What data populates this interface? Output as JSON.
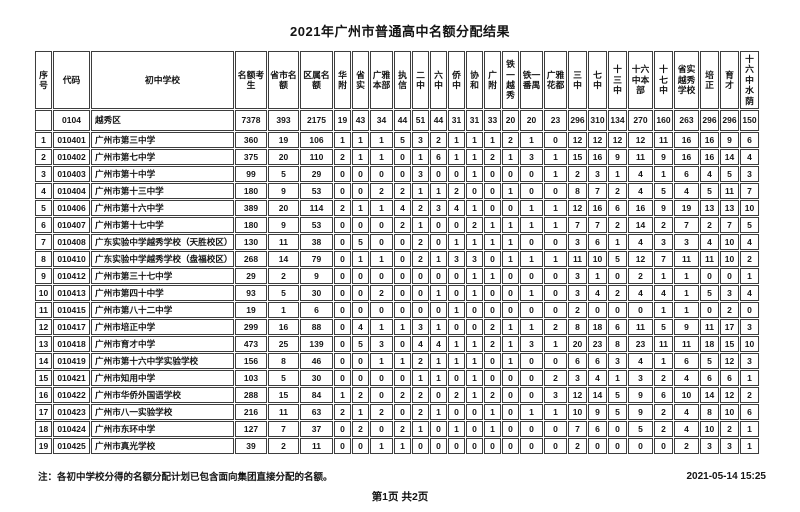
{
  "title": "2021年广州市普通高中名额分配结果",
  "note": "注：各初中学校分得的名额分配计划已包含面向集团直接分配的名额。",
  "footer": {
    "page_info": "第1页 共2页",
    "timestamp": "2021-05-14 15:25"
  },
  "table": {
    "headers": [
      "序号",
      "代码",
      "初中学校",
      "名额考生",
      "省市名额",
      "区属名额",
      "华附",
      "省实",
      "广雅本部",
      "执信",
      "二中",
      "六中",
      "侨中",
      "协和",
      "广附",
      "铁一越秀",
      "铁一番禺",
      "广雅花都",
      "三中",
      "七中",
      "十三中",
      "十六中本部",
      "十七中",
      "省实越秀学校",
      "培正",
      "育才",
      "十六中水荫"
    ],
    "summary_row": {
      "seq": "",
      "code": "0104",
      "school": "越秀区",
      "values": [
        7378,
        393,
        2175,
        19,
        43,
        34,
        44,
        51,
        44,
        31,
        31,
        33,
        20,
        20,
        23,
        296,
        310,
        134,
        270,
        160,
        263,
        296,
        296,
        150
      ]
    },
    "rows": [
      {
        "seq": "1",
        "code": "010401",
        "school": "广州市第三中学",
        "values": [
          360,
          19,
          106,
          1,
          1,
          1,
          5,
          3,
          2,
          1,
          1,
          1,
          2,
          1,
          0,
          12,
          12,
          12,
          12,
          11,
          16,
          16,
          9,
          6
        ]
      },
      {
        "seq": "2",
        "code": "010402",
        "school": "广州市第七中学",
        "values": [
          375,
          20,
          110,
          2,
          1,
          1,
          0,
          1,
          6,
          1,
          1,
          2,
          1,
          3,
          1,
          15,
          16,
          9,
          11,
          9,
          16,
          16,
          14,
          4
        ]
      },
      {
        "seq": "3",
        "code": "010403",
        "school": "广州市第十中学",
        "values": [
          99,
          5,
          29,
          0,
          0,
          0,
          0,
          3,
          0,
          0,
          1,
          0,
          0,
          0,
          1,
          2,
          3,
          1,
          4,
          1,
          6,
          4,
          5,
          3
        ]
      },
      {
        "seq": "4",
        "code": "010404",
        "school": "广州市第十三中学",
        "values": [
          180,
          9,
          53,
          0,
          0,
          2,
          2,
          1,
          1,
          2,
          0,
          0,
          1,
          0,
          0,
          8,
          7,
          2,
          4,
          5,
          4,
          5,
          11,
          7
        ]
      },
      {
        "seq": "5",
        "code": "010406",
        "school": "广州市第十六中学",
        "values": [
          389,
          20,
          114,
          2,
          1,
          1,
          4,
          2,
          3,
          4,
          1,
          0,
          0,
          1,
          1,
          12,
          16,
          6,
          16,
          9,
          19,
          13,
          13,
          10
        ]
      },
      {
        "seq": "6",
        "code": "010407",
        "school": "广州市第十七中学",
        "values": [
          180,
          9,
          53,
          0,
          0,
          0,
          2,
          1,
          0,
          0,
          2,
          1,
          1,
          1,
          1,
          7,
          7,
          2,
          14,
          2,
          7,
          2,
          7,
          5
        ]
      },
      {
        "seq": "7",
        "code": "010408",
        "school": "广东实验中学越秀学校（天胜校区）",
        "values": [
          130,
          11,
          38,
          0,
          5,
          0,
          0,
          2,
          0,
          1,
          1,
          1,
          1,
          0,
          0,
          3,
          6,
          1,
          4,
          3,
          3,
          4,
          10,
          4
        ]
      },
      {
        "seq": "8",
        "code": "010410",
        "school": "广东实验中学越秀学校（盘福校区）",
        "values": [
          268,
          14,
          79,
          0,
          1,
          1,
          0,
          2,
          1,
          3,
          3,
          0,
          1,
          1,
          1,
          11,
          10,
          5,
          12,
          7,
          11,
          11,
          10,
          2
        ]
      },
      {
        "seq": "9",
        "code": "010412",
        "school": "广州市第三十七中学",
        "values": [
          29,
          2,
          9,
          0,
          0,
          0,
          0,
          0,
          0,
          0,
          1,
          1,
          0,
          0,
          0,
          3,
          1,
          0,
          2,
          1,
          1,
          0,
          0,
          1
        ]
      },
      {
        "seq": "10",
        "code": "010413",
        "school": "广州市第四十中学",
        "values": [
          93,
          5,
          30,
          0,
          0,
          2,
          0,
          0,
          1,
          0,
          1,
          0,
          0,
          1,
          0,
          3,
          4,
          2,
          4,
          4,
          1,
          5,
          3,
          4
        ]
      },
      {
        "seq": "11",
        "code": "010415",
        "school": "广州市第八十二中学",
        "values": [
          19,
          1,
          6,
          0,
          0,
          0,
          0,
          0,
          0,
          1,
          0,
          0,
          0,
          0,
          0,
          2,
          0,
          0,
          0,
          1,
          1,
          0,
          2,
          0
        ]
      },
      {
        "seq": "12",
        "code": "010417",
        "school": "广州市培正中学",
        "values": [
          299,
          16,
          88,
          0,
          4,
          1,
          1,
          3,
          1,
          0,
          0,
          2,
          1,
          1,
          2,
          8,
          18,
          6,
          11,
          5,
          9,
          11,
          17,
          3
        ]
      },
      {
        "seq": "13",
        "code": "010418",
        "school": "广州市育才中学",
        "values": [
          473,
          25,
          139,
          0,
          5,
          3,
          0,
          4,
          4,
          1,
          1,
          2,
          1,
          3,
          1,
          20,
          23,
          8,
          23,
          11,
          11,
          18,
          15,
          10
        ]
      },
      {
        "seq": "14",
        "code": "010419",
        "school": "广州市第十六中学实验学校",
        "values": [
          156,
          8,
          46,
          0,
          0,
          1,
          1,
          2,
          1,
          1,
          1,
          0,
          1,
          0,
          0,
          6,
          6,
          3,
          4,
          1,
          6,
          5,
          12,
          3
        ]
      },
      {
        "seq": "15",
        "code": "010421",
        "school": "广州市知用中学",
        "values": [
          103,
          5,
          30,
          0,
          0,
          0,
          0,
          1,
          1,
          0,
          1,
          0,
          0,
          0,
          2,
          3,
          4,
          1,
          3,
          2,
          4,
          6,
          6,
          1
        ]
      },
      {
        "seq": "16",
        "code": "010422",
        "school": "广州市华侨外国语学校",
        "values": [
          288,
          15,
          84,
          1,
          2,
          0,
          2,
          2,
          0,
          2,
          1,
          2,
          0,
          0,
          3,
          12,
          14,
          5,
          9,
          6,
          10,
          14,
          12,
          2
        ]
      },
      {
        "seq": "17",
        "code": "010423",
        "school": "广州市八一实验学校",
        "values": [
          216,
          11,
          63,
          2,
          1,
          2,
          0,
          2,
          1,
          0,
          0,
          1,
          0,
          1,
          1,
          10,
          9,
          5,
          9,
          2,
          4,
          8,
          10,
          6
        ]
      },
      {
        "seq": "18",
        "code": "010424",
        "school": "广州市东环中学",
        "values": [
          127,
          7,
          37,
          0,
          2,
          0,
          2,
          1,
          0,
          1,
          0,
          1,
          0,
          0,
          0,
          7,
          6,
          0,
          5,
          2,
          4,
          10,
          2,
          1
        ]
      },
      {
        "seq": "19",
        "code": "010425",
        "school": "广州市真光学校",
        "values": [
          39,
          2,
          11,
          0,
          0,
          1,
          1,
          0,
          0,
          0,
          0,
          0,
          0,
          0,
          0,
          2,
          0,
          0,
          0,
          0,
          2,
          3,
          3,
          1
        ]
      }
    ]
  }
}
